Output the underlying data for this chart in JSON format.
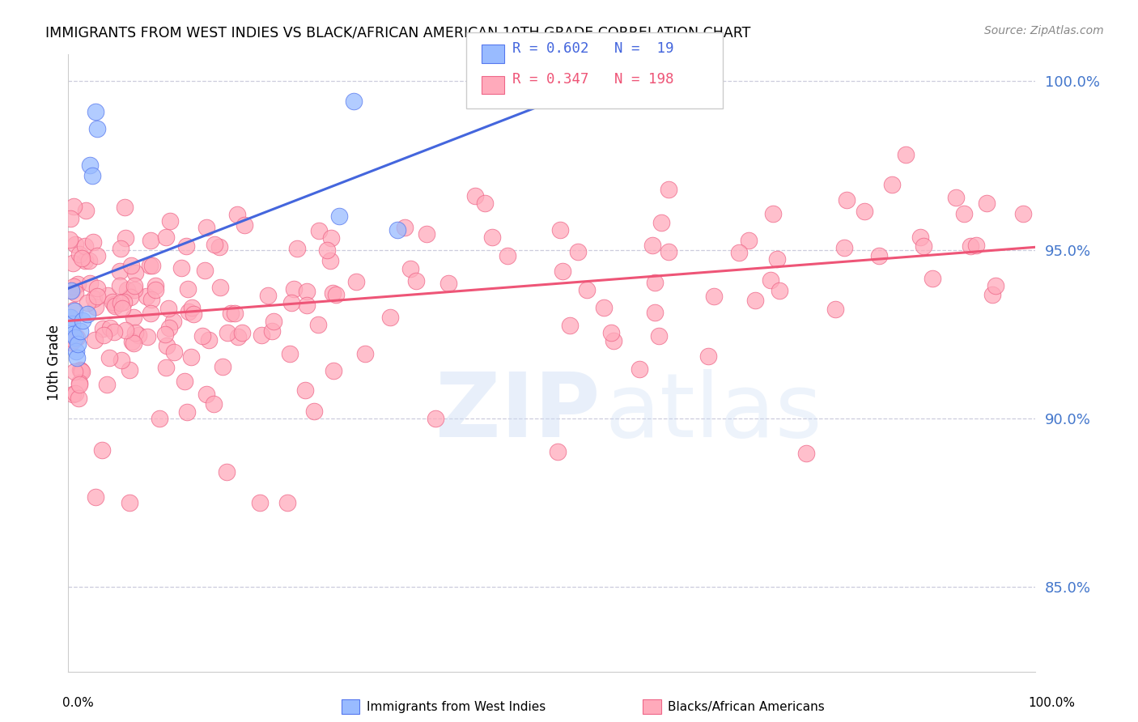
{
  "title": "IMMIGRANTS FROM WEST INDIES VS BLACK/AFRICAN AMERICAN 10TH GRADE CORRELATION CHART",
  "source": "Source: ZipAtlas.com",
  "ylabel": "10th Grade",
  "blue_R": 0.602,
  "blue_N": 19,
  "pink_R": 0.347,
  "pink_N": 198,
  "blue_color": "#99BBFF",
  "pink_color": "#FFAABB",
  "blue_edge_color": "#5577EE",
  "pink_edge_color": "#EE6688",
  "blue_line_color": "#4466DD",
  "pink_line_color": "#EE5577",
  "ytick_vals": [
    0.85,
    0.9,
    0.95,
    1.0
  ],
  "ytick_labels": [
    "85.0%",
    "90.0%",
    "95.0%",
    "100.0%"
  ],
  "ymin": 0.825,
  "ymax": 1.008,
  "xmin": 0.0,
  "xmax": 1.0,
  "label_color": "#4477CC"
}
